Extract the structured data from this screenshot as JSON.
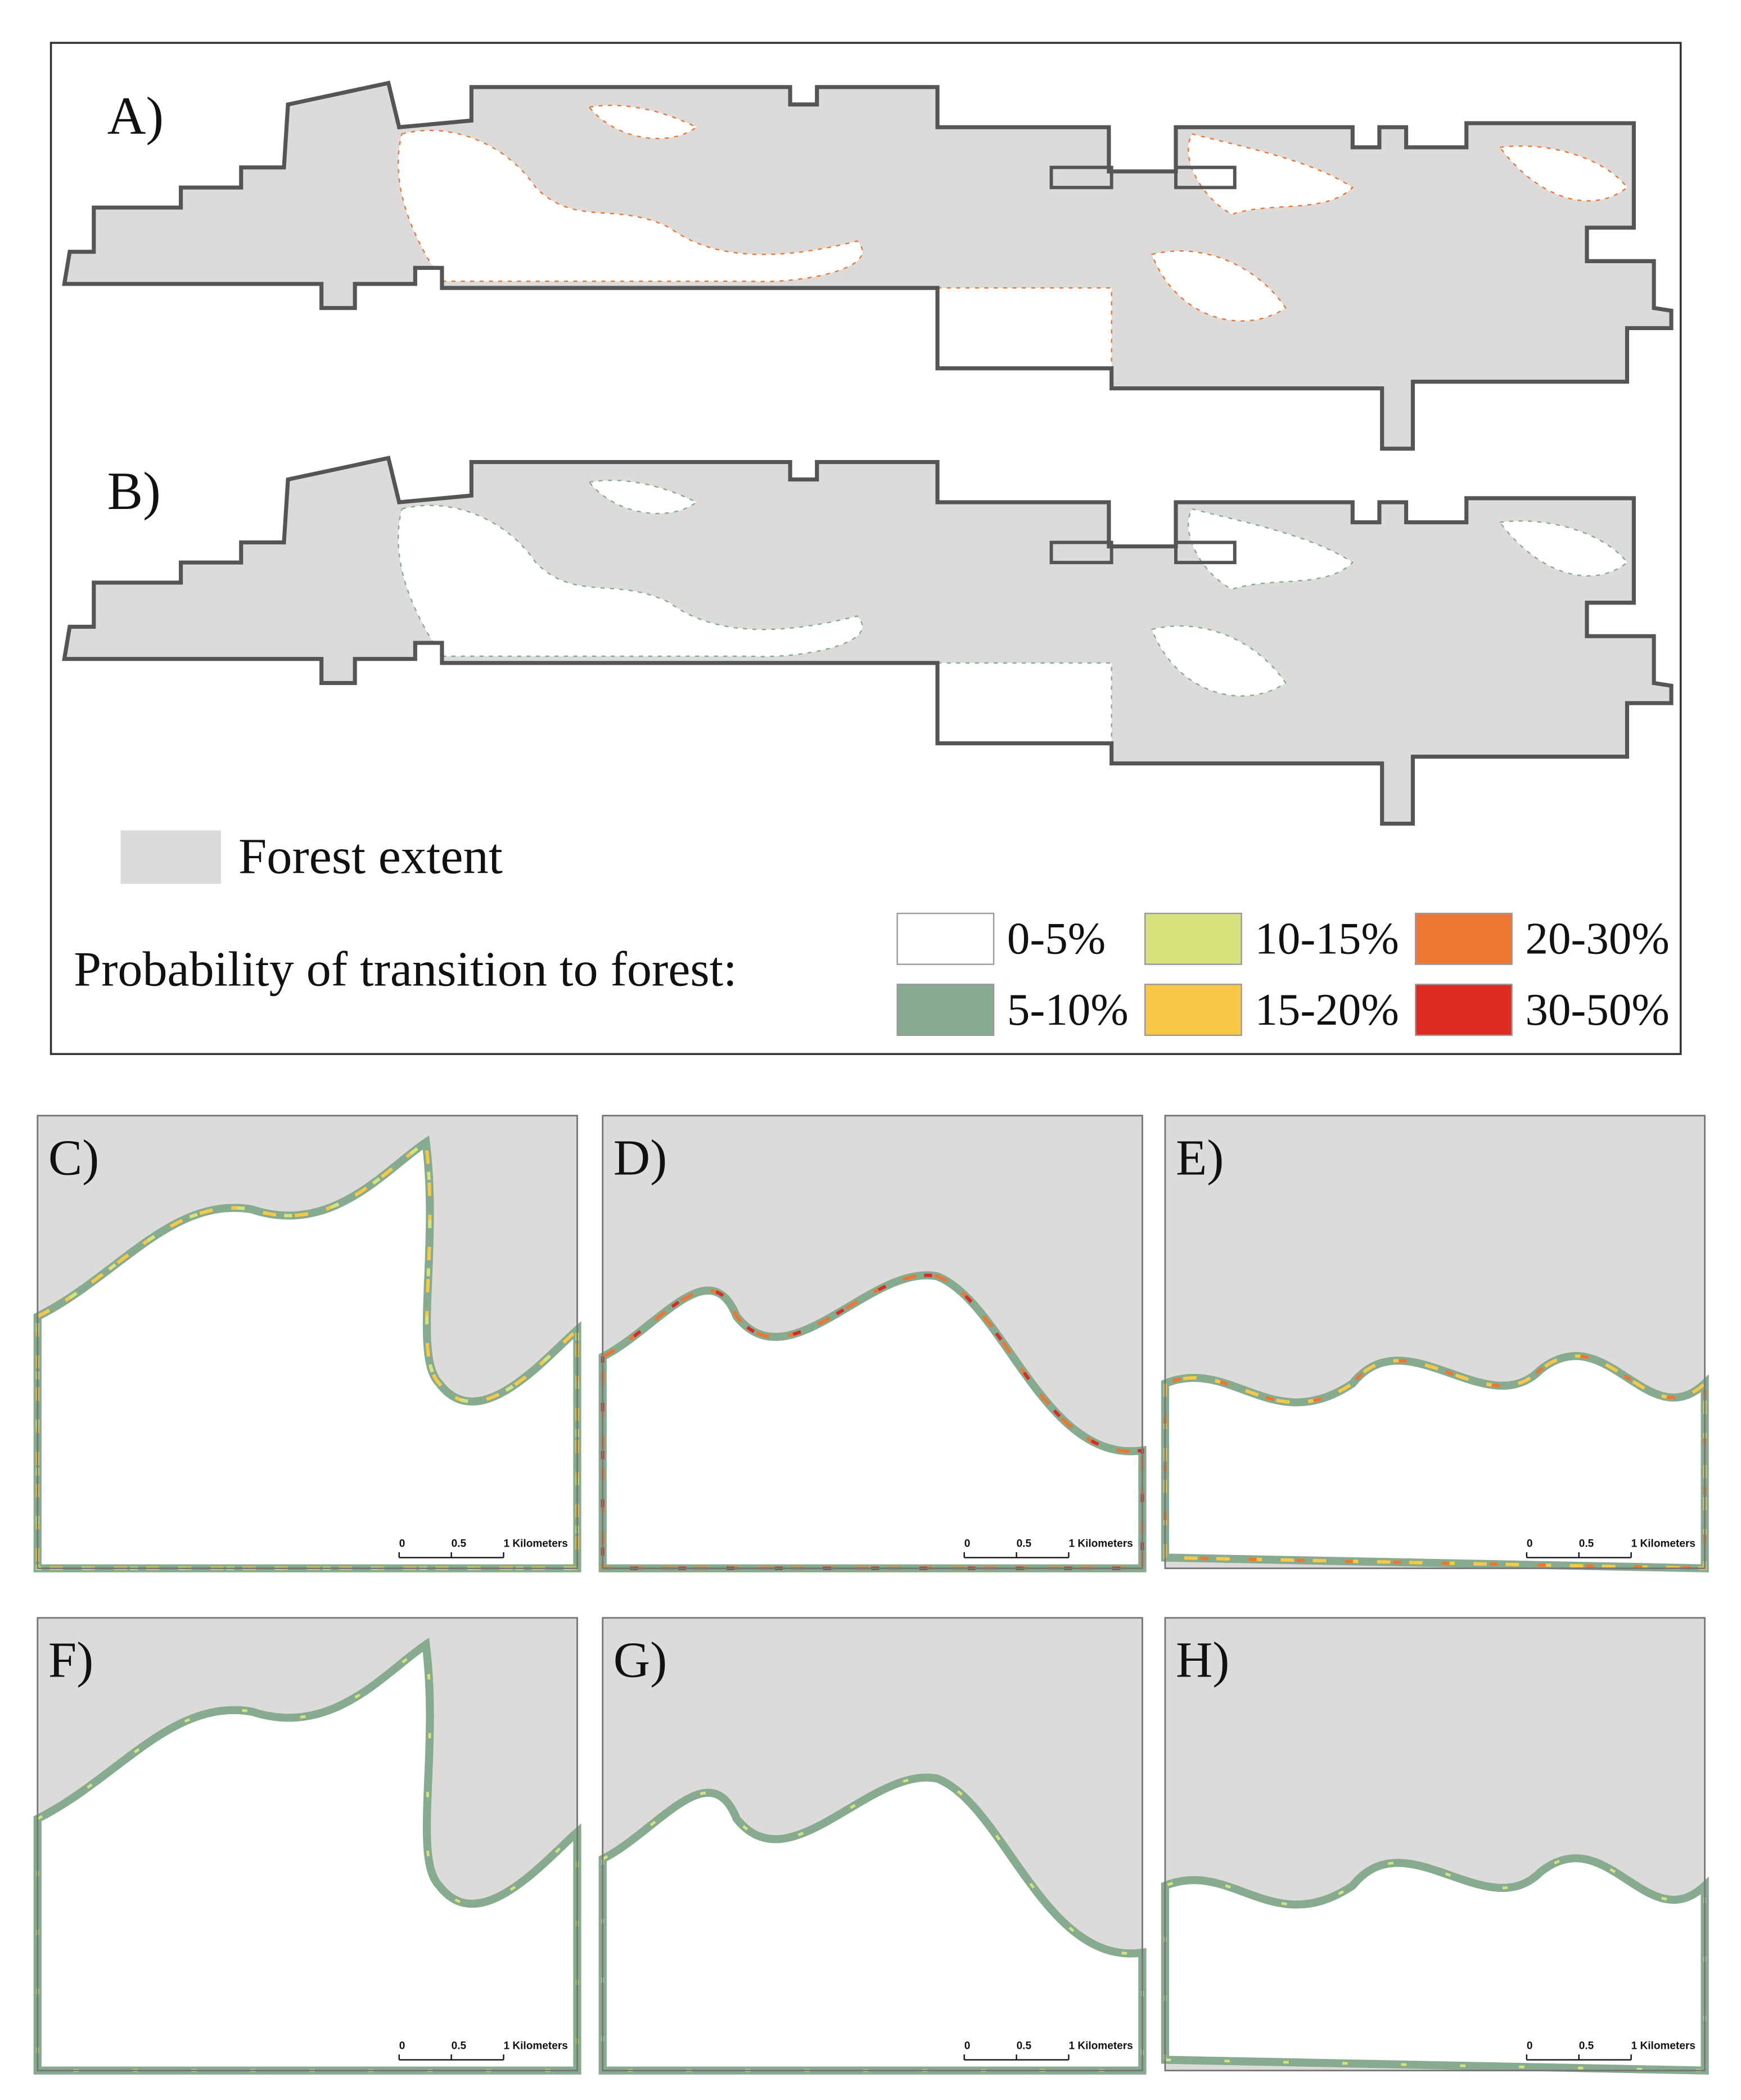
{
  "panels": {
    "a": "A)",
    "b": "B)",
    "c": "C)",
    "d": "D)",
    "e": "E)",
    "f": "F)",
    "g": "G)",
    "h": "H)"
  },
  "legend": {
    "forest": "Forest extent",
    "forest_color": "#dcdbd9",
    "title": "Probability of transition to forest:",
    "classes": [
      {
        "label": "0-5%",
        "color": "#ffffff"
      },
      {
        "label": "5-10%",
        "color": "#86ab8f"
      },
      {
        "label": "10-15%",
        "color": "#d6e27c"
      },
      {
        "label": "15-20%",
        "color": "#f9c846"
      },
      {
        "label": "20-30%",
        "color": "#ee7633"
      },
      {
        "label": "30-50%",
        "color": "#dd2a22"
      }
    ]
  },
  "scale_bar": {
    "ticks": [
      "0",
      "0.5",
      "1 Kilometers"
    ]
  }
}
